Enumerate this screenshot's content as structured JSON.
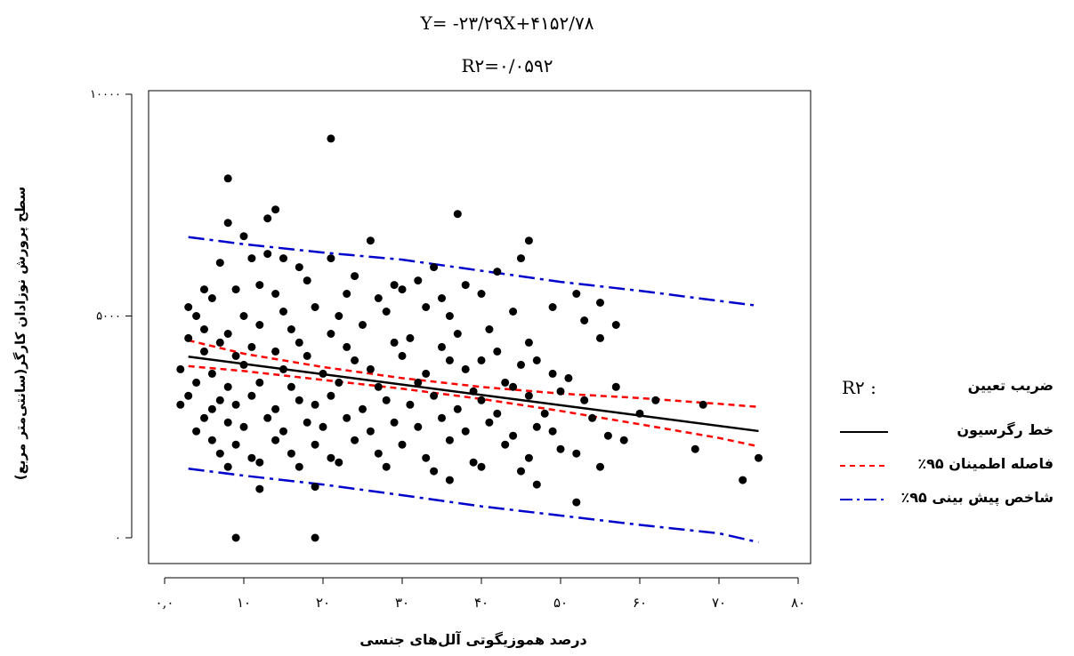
{
  "equation": "Y= -۲۳/۲۹X+۴۱۵۲/۷۸",
  "r_squared_text": "R۲=۰/۰۵۹۲",
  "legend": {
    "r2_symbol": "R۲ :",
    "r2_label": "ضریب تعیین",
    "regression_label": "خط رگرسیون",
    "confidence_label": "فاصله اطمینان ۹۵٪",
    "prediction_label": "شاخص پیش بینی ۹۵٪"
  },
  "colors": {
    "regression": "#000000",
    "confidence": "#ff0000",
    "prediction": "#0000cc",
    "points": "#000000"
  },
  "chart_data": {
    "type": "scatter",
    "xlabel": "درصد هموزیگوتی آلل‌های جنسی",
    "ylabel": "سطح پرورش نوزادان کارگر(سانتی‌متر مربع)",
    "xlim": [
      0,
      80
    ],
    "ylim": [
      0,
      10000
    ],
    "x_ticks": [
      0,
      10,
      20,
      30,
      40,
      50,
      60,
      70,
      80
    ],
    "x_tick_labels": [
      "۰,۰",
      "۱۰",
      "۲۰",
      "۳۰",
      "۴۰",
      "۵۰",
      "۶۰",
      "۷۰",
      "۸۰"
    ],
    "y_ticks": [
      0,
      5000,
      10000
    ],
    "y_tick_labels": [
      "۰",
      "۵۰۰۰",
      "۱۰۰۰۰"
    ],
    "regression": {
      "slope": -23.29,
      "intercept": 4152.78,
      "x_range": [
        3,
        75
      ]
    },
    "confidence_band": {
      "upper": [
        [
          3,
          4450
        ],
        [
          10,
          4150
        ],
        [
          20,
          3850
        ],
        [
          30,
          3600
        ],
        [
          40,
          3400
        ],
        [
          50,
          3250
        ],
        [
          60,
          3150
        ],
        [
          70,
          3020
        ],
        [
          75,
          2950
        ]
      ],
      "lower": [
        [
          3,
          3870
        ],
        [
          10,
          3760
        ],
        [
          20,
          3560
        ],
        [
          30,
          3360
        ],
        [
          40,
          3130
        ],
        [
          50,
          2860
        ],
        [
          60,
          2560
        ],
        [
          70,
          2250
        ],
        [
          75,
          2060
        ]
      ]
    },
    "prediction_band": {
      "upper": [
        [
          3,
          6780
        ],
        [
          10,
          6620
        ],
        [
          20,
          6430
        ],
        [
          30,
          6270
        ],
        [
          40,
          6020
        ],
        [
          50,
          5770
        ],
        [
          60,
          5570
        ],
        [
          70,
          5340
        ],
        [
          75,
          5230
        ]
      ],
      "lower": [
        [
          3,
          1560
        ],
        [
          10,
          1400
        ],
        [
          20,
          1200
        ],
        [
          30,
          960
        ],
        [
          40,
          710
        ],
        [
          50,
          500
        ],
        [
          60,
          290
        ],
        [
          70,
          100
        ],
        [
          75,
          -100
        ]
      ]
    },
    "points": [
      [
        9,
        0
      ],
      [
        19,
        0
      ],
      [
        21,
        9000
      ],
      [
        8,
        8100
      ],
      [
        14,
        7400
      ],
      [
        13,
        7200
      ],
      [
        37,
        7300
      ],
      [
        8,
        7100
      ],
      [
        10,
        6800
      ],
      [
        26,
        6700
      ],
      [
        46,
        6700
      ],
      [
        13,
        6400
      ],
      [
        15,
        6300
      ],
      [
        21,
        6300
      ],
      [
        45,
        6300
      ],
      [
        7,
        6200
      ],
      [
        11,
        6300
      ],
      [
        17,
        6100
      ],
      [
        34,
        6100
      ],
      [
        42,
        6000
      ],
      [
        5,
        5600
      ],
      [
        12,
        5700
      ],
      [
        18,
        5800
      ],
      [
        24,
        5900
      ],
      [
        29,
        5700
      ],
      [
        32,
        5800
      ],
      [
        38,
        5700
      ],
      [
        3,
        5200
      ],
      [
        6,
        5400
      ],
      [
        9,
        5600
      ],
      [
        14,
        5500
      ],
      [
        23,
        5500
      ],
      [
        27,
        5400
      ],
      [
        30,
        5600
      ],
      [
        35,
        5400
      ],
      [
        40,
        5500
      ],
      [
        52,
        5500
      ],
      [
        55,
        5300
      ],
      [
        49,
        5200
      ],
      [
        4,
        5000
      ],
      [
        10,
        5000
      ],
      [
        15,
        5100
      ],
      [
        19,
        5200
      ],
      [
        22,
        5000
      ],
      [
        28,
        5100
      ],
      [
        33,
        5200
      ],
      [
        36,
        5000
      ],
      [
        44,
        5100
      ],
      [
        53,
        4900
      ],
      [
        57,
        4800
      ],
      [
        5,
        4700
      ],
      [
        8,
        4600
      ],
      [
        12,
        4800
      ],
      [
        16,
        4700
      ],
      [
        21,
        4600
      ],
      [
        25,
        4800
      ],
      [
        31,
        4500
      ],
      [
        37,
        4600
      ],
      [
        41,
        4700
      ],
      [
        46,
        4400
      ],
      [
        3,
        4500
      ],
      [
        7,
        4400
      ],
      [
        11,
        4300
      ],
      [
        17,
        4400
      ],
      [
        23,
        4300
      ],
      [
        29,
        4400
      ],
      [
        35,
        4300
      ],
      [
        42,
        4200
      ],
      [
        47,
        4000
      ],
      [
        55,
        4500
      ],
      [
        5,
        4200
      ],
      [
        9,
        4100
      ],
      [
        14,
        4200
      ],
      [
        18,
        4100
      ],
      [
        24,
        4000
      ],
      [
        30,
        4100
      ],
      [
        36,
        4000
      ],
      [
        40,
        4000
      ],
      [
        45,
        3900
      ],
      [
        49,
        3700
      ],
      [
        2,
        3800
      ],
      [
        6,
        3700
      ],
      [
        10,
        3900
      ],
      [
        15,
        3800
      ],
      [
        20,
        3700
      ],
      [
        26,
        3800
      ],
      [
        33,
        3700
      ],
      [
        38,
        3800
      ],
      [
        43,
        3500
      ],
      [
        51,
        3600
      ],
      [
        4,
        3500
      ],
      [
        8,
        3400
      ],
      [
        12,
        3500
      ],
      [
        16,
        3400
      ],
      [
        22,
        3500
      ],
      [
        27,
        3400
      ],
      [
        32,
        3500
      ],
      [
        39,
        3300
      ],
      [
        44,
        3400
      ],
      [
        50,
        3300
      ],
      [
        3,
        3200
      ],
      [
        7,
        3100
      ],
      [
        11,
        3200
      ],
      [
        17,
        3100
      ],
      [
        21,
        3200
      ],
      [
        28,
        3100
      ],
      [
        34,
        3200
      ],
      [
        40,
        3100
      ],
      [
        46,
        3200
      ],
      [
        53,
        3100
      ],
      [
        2,
        3000
      ],
      [
        6,
        2900
      ],
      [
        9,
        3000
      ],
      [
        14,
        2900
      ],
      [
        19,
        3000
      ],
      [
        25,
        2900
      ],
      [
        31,
        3000
      ],
      [
        37,
        2900
      ],
      [
        42,
        2800
      ],
      [
        48,
        2800
      ],
      [
        5,
        2700
      ],
      [
        8,
        2600
      ],
      [
        13,
        2700
      ],
      [
        18,
        2600
      ],
      [
        23,
        2700
      ],
      [
        29,
        2600
      ],
      [
        35,
        2700
      ],
      [
        41,
        2600
      ],
      [
        47,
        2500
      ],
      [
        54,
        2700
      ],
      [
        4,
        2400
      ],
      [
        10,
        2500
      ],
      [
        15,
        2400
      ],
      [
        20,
        2500
      ],
      [
        26,
        2400
      ],
      [
        32,
        2500
      ],
      [
        38,
        2400
      ],
      [
        44,
        2300
      ],
      [
        49,
        2400
      ],
      [
        56,
        2300
      ],
      [
        6,
        2200
      ],
      [
        9,
        2100
      ],
      [
        14,
        2200
      ],
      [
        19,
        2100
      ],
      [
        24,
        2200
      ],
      [
        30,
        2100
      ],
      [
        36,
        2200
      ],
      [
        43,
        2100
      ],
      [
        50,
        2000
      ],
      [
        58,
        2200
      ],
      [
        7,
        1900
      ],
      [
        11,
        1800
      ],
      [
        16,
        1900
      ],
      [
        21,
        1800
      ],
      [
        27,
        1900
      ],
      [
        33,
        1800
      ],
      [
        39,
        1700
      ],
      [
        46,
        1800
      ],
      [
        52,
        1900
      ],
      [
        67,
        2000
      ],
      [
        8,
        1600
      ],
      [
        12,
        1700
      ],
      [
        17,
        1600
      ],
      [
        22,
        1700
      ],
      [
        28,
        1600
      ],
      [
        34,
        1500
      ],
      [
        40,
        1600
      ],
      [
        45,
        1500
      ],
      [
        55,
        1600
      ],
      [
        75,
        1800
      ],
      [
        12,
        1100
      ],
      [
        19,
        1150
      ],
      [
        36,
        1300
      ],
      [
        47,
        1200
      ],
      [
        52,
        800
      ],
      [
        73,
        1300
      ],
      [
        62,
        3100
      ],
      [
        68,
        3000
      ],
      [
        57,
        3400
      ],
      [
        60,
        2800
      ]
    ]
  }
}
